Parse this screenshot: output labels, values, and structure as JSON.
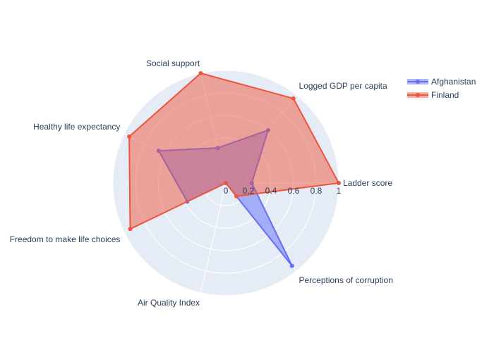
{
  "chart_data": {
    "type": "radar",
    "axes": [
      "Ladder score",
      "Logged GDP per capita",
      "Social support",
      "Healthy life expectancy",
      "Freedom to make life choices",
      "Air Quality Index",
      "Perceptions of corruption"
    ],
    "radial_range": [
      0,
      1
    ],
    "radial_ticks": [
      "0",
      "0.2",
      "0.4",
      "0.6",
      "0.8",
      "1"
    ],
    "grid": true,
    "legend_position": "top-right",
    "series": [
      {
        "name": "Afghanistan",
        "color": "#636efa",
        "values": [
          0.23,
          0.6,
          0.32,
          0.66,
          0.38,
          0.0,
          0.94
        ]
      },
      {
        "name": "Finland",
        "color": "#ef553b",
        "values": [
          1.0,
          0.96,
          1.0,
          0.95,
          0.94,
          0.0,
          0.15
        ]
      }
    ]
  }
}
